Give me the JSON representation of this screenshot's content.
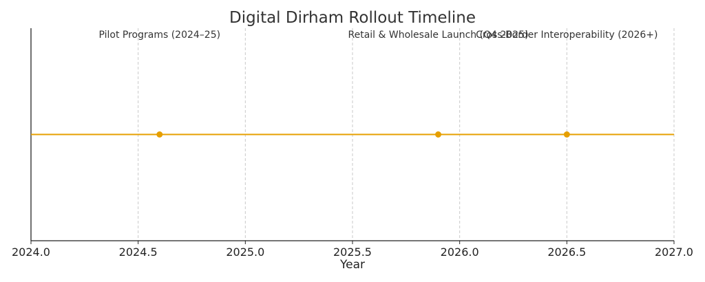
{
  "chart_data": {
    "type": "line",
    "title": "Digital Dirham Rollout Timeline",
    "xlabel": "Year",
    "ylabel": "",
    "xlim": [
      2024.0,
      2027.0
    ],
    "xticks": [
      "2024.0",
      "2024.5",
      "2025.0",
      "2025.5",
      "2026.0",
      "2026.5",
      "2027.0"
    ],
    "grid": "vertical dashed",
    "line_color": "#e69f00",
    "events": [
      {
        "x": 2024.6,
        "label": "Pilot Programs (2024–25)"
      },
      {
        "x": 2025.9,
        "label": "Retail & Wholesale Launch (Q4 2025)"
      },
      {
        "x": 2026.5,
        "label": "Cross-Border Interoperability (2026+)"
      }
    ]
  }
}
